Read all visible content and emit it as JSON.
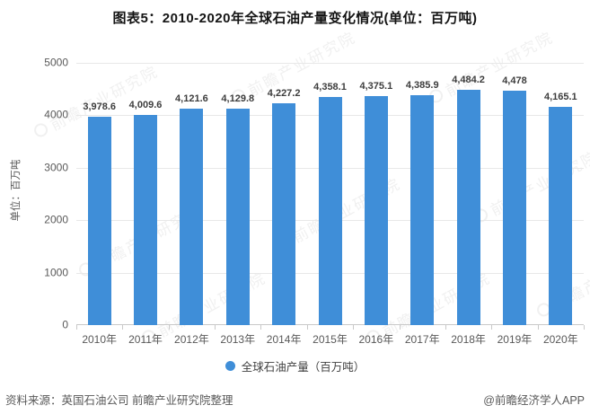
{
  "chart_data": {
    "type": "bar",
    "title": "图表5：2010-2020年全球石油产量变化情况(单位：百万吨)",
    "categories": [
      "2010年",
      "2011年",
      "2012年",
      "2013年",
      "2014年",
      "2015年",
      "2016年",
      "2017年",
      "2018年",
      "2019年",
      "2020年"
    ],
    "values": [
      3978.6,
      4009.6,
      4121.6,
      4129.8,
      4227.2,
      4358.1,
      4375.1,
      4385.9,
      4484.2,
      4478,
      4165.1
    ],
    "value_labels": [
      "3,978.6",
      "4,009.6",
      "4,121.6",
      "4,129.8",
      "4,227.2",
      "4,358.1",
      "4,375.1",
      "4,385.9",
      "4,484.2",
      "4,478",
      "4,165.1"
    ],
    "xlabel": "",
    "ylabel": "单位：百万吨",
    "ylim": [
      0,
      5000
    ],
    "yticks": [
      0,
      1000,
      2000,
      3000,
      4000,
      5000
    ],
    "grid": true,
    "bar_color": "#3f8ed8",
    "legend": {
      "label": "全球石油产量（百万吨）",
      "position": "bottom",
      "marker": "circle"
    }
  },
  "footer": {
    "source": "资料来源：英国石油公司 前瞻产业研究院整理",
    "credit": "@前瞻经济学人APP"
  },
  "watermark": {
    "text": "前瞻产业研究院"
  }
}
